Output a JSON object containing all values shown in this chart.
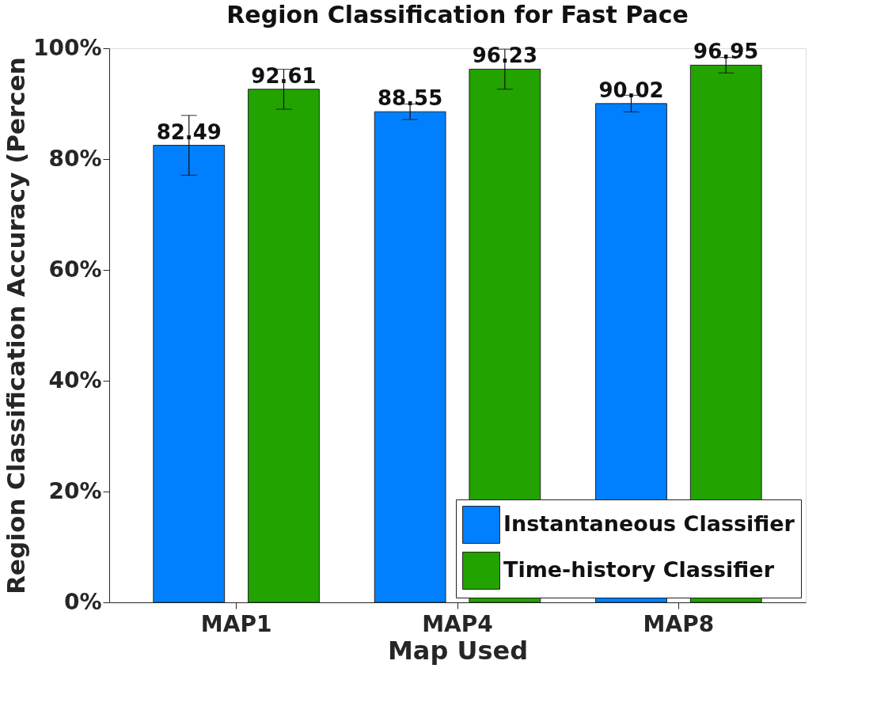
{
  "chart_data": {
    "type": "bar",
    "title": "Region Classification for Fast Pace",
    "xlabel": "Map Used",
    "ylabel": "Region Classification Accuracy (Percen",
    "categories": [
      "MAP1",
      "MAP4",
      "MAP8"
    ],
    "series": [
      {
        "name": "Instantaneous Classifier",
        "color": "#0080ff",
        "values": [
          82.49,
          88.55,
          90.02
        ],
        "errors": [
          5.4,
          1.4,
          1.5
        ]
      },
      {
        "name": "Time-history Classifier",
        "color": "#22a300",
        "values": [
          92.61,
          96.23,
          96.95
        ],
        "errors": [
          3.6,
          3.6,
          1.4
        ]
      }
    ],
    "ylim": [
      0,
      100
    ],
    "yticks": [
      {
        "value": 0,
        "label": "0%"
      },
      {
        "value": 20,
        "label": "20%"
      },
      {
        "value": 40,
        "label": "40%"
      },
      {
        "value": 60,
        "label": "60%"
      },
      {
        "value": 80,
        "label": "80%"
      },
      {
        "value": 100,
        "label": "100%"
      }
    ],
    "data_labels": true,
    "legend": "bottom right",
    "grid": false
  }
}
